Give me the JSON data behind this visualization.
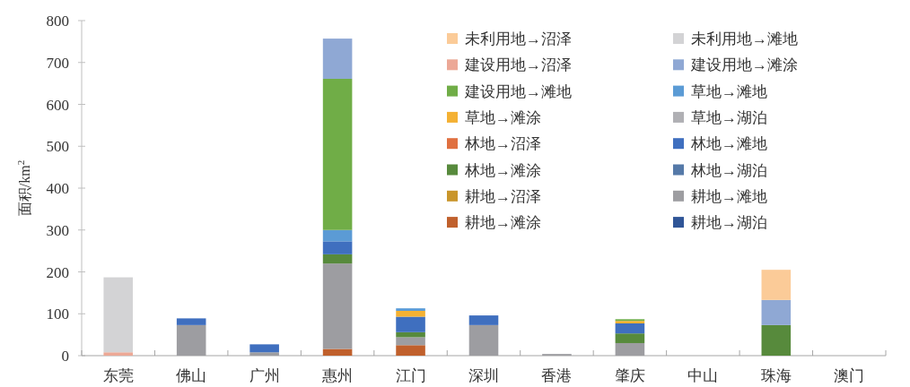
{
  "chart_data": {
    "type": "bar",
    "stacked": true,
    "ylabel": "面积/km$^{2}$",
    "categories": [
      "东莞",
      "佛山",
      "广州",
      "惠州",
      "江门",
      "深圳",
      "香港",
      "肇庆",
      "中山",
      "珠海",
      "澳门"
    ],
    "ylim": [
      0,
      800
    ],
    "yticks": [
      0,
      100,
      200,
      300,
      400,
      500,
      600,
      700,
      800
    ],
    "grid": false,
    "legend": "top right",
    "series": [
      {
        "name": "耕地→湖泊",
        "color": "#2f5597",
        "values": [
          0,
          0,
          0,
          0,
          0,
          0,
          0,
          0,
          0,
          0,
          0
        ]
      },
      {
        "name": "耕地→滩涂",
        "color": "#c0602c",
        "values": [
          0,
          0,
          0,
          16,
          25,
          0,
          0,
          0,
          0,
          0,
          0
        ]
      },
      {
        "name": "耕地→滩地",
        "color": "#9d9da1",
        "values": [
          0,
          73,
          8,
          204,
          19,
          73,
          4,
          30,
          0,
          0,
          0
        ]
      },
      {
        "name": "耕地→沼泽",
        "color": "#c9952a",
        "values": [
          0,
          0,
          0,
          0,
          0,
          0,
          0,
          0,
          0,
          0,
          0
        ]
      },
      {
        "name": "林地→湖泊",
        "color": "#5579a8",
        "values": [
          0,
          0,
          0,
          0,
          0,
          0,
          0,
          0,
          0,
          0,
          0
        ]
      },
      {
        "name": "林地→滩涂",
        "color": "#578a3c",
        "values": [
          0,
          0,
          0,
          22,
          12,
          0,
          0,
          23,
          0,
          73,
          0
        ]
      },
      {
        "name": "林地→滩地",
        "color": "#3f6fbf",
        "values": [
          0,
          16,
          19,
          31,
          37,
          23,
          0,
          24,
          0,
          0,
          0
        ]
      },
      {
        "name": "林地→沼泽",
        "color": "#e07040",
        "values": [
          0,
          0,
          0,
          0,
          0,
          0,
          0,
          0,
          0,
          0,
          0
        ]
      },
      {
        "name": "草地→湖泊",
        "color": "#b0b0b4",
        "values": [
          0,
          0,
          0,
          0,
          0,
          0,
          0,
          0,
          0,
          0,
          0
        ]
      },
      {
        "name": "草地→滩涂",
        "color": "#f4b133",
        "values": [
          0,
          0,
          0,
          0,
          14,
          0,
          0,
          6,
          0,
          0,
          0
        ]
      },
      {
        "name": "草地→滩地",
        "color": "#5b9bd5",
        "values": [
          0,
          0,
          0,
          27,
          6,
          0,
          0,
          0,
          0,
          0,
          0
        ]
      },
      {
        "name": "建设用地→滩地",
        "color": "#70ad47",
        "values": [
          0,
          0,
          0,
          361,
          0,
          0,
          0,
          4,
          0,
          0,
          0
        ]
      },
      {
        "name": "建设用地→滩涂",
        "color": "#8fa8d4",
        "values": [
          0,
          0,
          0,
          96,
          0,
          0,
          0,
          0,
          0,
          60,
          0
        ]
      },
      {
        "name": "建设用地→沼泽",
        "color": "#eca896",
        "values": [
          8,
          0,
          0,
          0,
          0,
          0,
          0,
          0,
          0,
          0,
          0
        ]
      },
      {
        "name": "未利用地→滩地",
        "color": "#d3d3d5",
        "values": [
          179,
          0,
          0,
          0,
          0,
          0,
          0,
          0,
          0,
          0,
          0
        ]
      },
      {
        "name": "未利用地→沼泽",
        "color": "#fbcb98",
        "values": [
          0,
          0,
          0,
          0,
          0,
          0,
          0,
          0,
          0,
          72,
          0
        ]
      }
    ]
  }
}
